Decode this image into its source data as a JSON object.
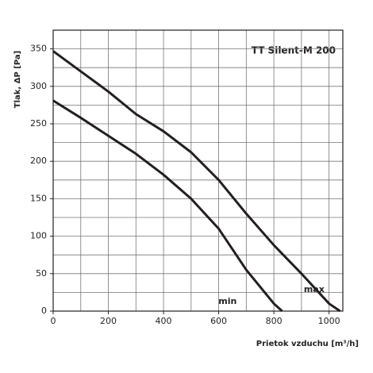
{
  "chart_data": {
    "type": "line",
    "title": "TT Silent-M 200",
    "x_label": "Prietok vzduchu  [m³/h]",
    "y_label": "Tlak, ΔP [Pa]",
    "series": [
      {
        "name": "max",
        "color": "#231f20",
        "x": [
          0,
          100,
          200,
          300,
          400,
          500,
          600,
          700,
          800,
          900,
          1000,
          1040
        ],
        "values": [
          347,
          320,
          293,
          263,
          240,
          212,
          175,
          130,
          88,
          50,
          10,
          0
        ]
      },
      {
        "name": "min",
        "color": "#231f20",
        "x": [
          0,
          100,
          200,
          300,
          400,
          500,
          600,
          700,
          800,
          830
        ],
        "values": [
          281,
          258,
          234,
          210,
          182,
          150,
          110,
          55,
          10,
          0
        ]
      }
    ],
    "xlim": [
      0,
      1050
    ],
    "ylim": [
      0,
      375
    ],
    "xticks": [
      0,
      200,
      400,
      600,
      800,
      1000
    ],
    "yticks": [
      0,
      50,
      100,
      150,
      200,
      250,
      300,
      350
    ],
    "xgrid_step": 100,
    "ygrid_step": 25,
    "grid": true
  }
}
